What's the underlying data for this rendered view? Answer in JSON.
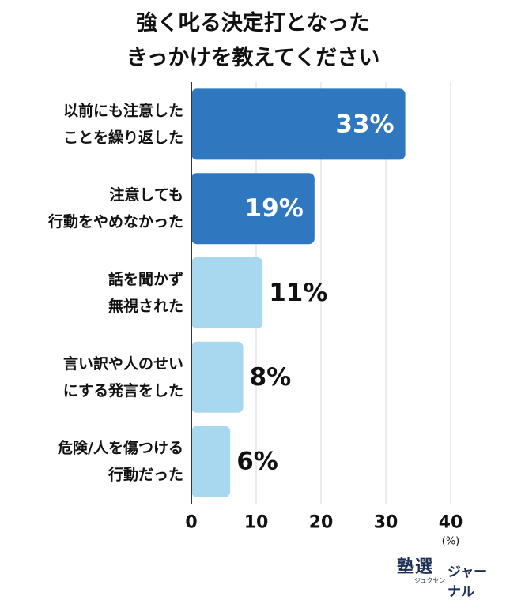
{
  "title_line1": "強く叱る決定打となった",
  "title_line2": "きっかけを教えてください",
  "logo": {
    "main": "塾選",
    "sub": "ジュクセン",
    "word": "ジャーナル"
  },
  "chart_data": {
    "type": "bar",
    "orientation": "horizontal",
    "categories": [
      [
        "以前にも注意した",
        "ことを繰り返した"
      ],
      [
        "注意しても",
        "行動をやめなかった"
      ],
      [
        "話を聞かず",
        "無視された"
      ],
      [
        "言い訳や人のせい",
        "にする発言をした"
      ],
      [
        "危険/人を傷つける",
        "行動だった"
      ]
    ],
    "values": [
      33,
      19,
      11,
      8,
      6
    ],
    "value_labels": [
      "33%",
      "19%",
      "11%",
      "8%",
      "6%"
    ],
    "xlim": [
      0,
      40
    ],
    "xticks": [
      0,
      10,
      20,
      30,
      40
    ],
    "xunit": "(%)",
    "grid": true,
    "colors": {
      "highlight": "#2f78c0",
      "normal": "#a7d8ef",
      "label_inside": "#ffffff",
      "label_outside": "#111111",
      "grid": "#d9d9d9",
      "axis": "#333333"
    }
  }
}
